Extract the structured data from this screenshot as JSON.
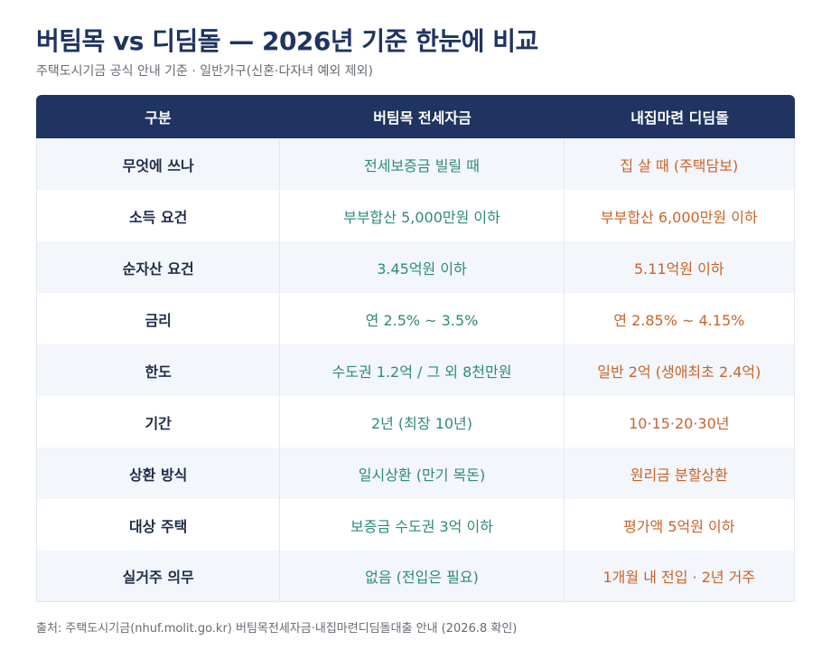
{
  "title": "버팀목 vs 디딤돌 — 2026년 기준 한눈에 비교",
  "subtitle": "주택도시기금 공식 안내 기준 · 일반가구(신혼·다자녀 예외 제외)",
  "table": {
    "headers": [
      "구분",
      "버팀목 전세자금",
      "내집마련 디딤돌"
    ],
    "rows": [
      {
        "label": "무엇에 쓰나",
        "a": "전세보증금 빌릴 때",
        "b": "집 살 때 (주택담보)"
      },
      {
        "label": "소득 요건",
        "a": "부부합산 5,000만원 이하",
        "b": "부부합산 6,000만원 이하"
      },
      {
        "label": "순자산 요건",
        "a": "3.45억원 이하",
        "b": "5.11억원 이하"
      },
      {
        "label": "금리",
        "a": "연 2.5% ~ 3.5%",
        "b": "연 2.85% ~ 4.15%"
      },
      {
        "label": "한도",
        "a": "수도권 1.2억 / 그 외 8천만원",
        "b": "일반 2억 (생애최초 2.4억)"
      },
      {
        "label": "기간",
        "a": "2년 (최장 10년)",
        "b": "10·15·20·30년"
      },
      {
        "label": "상환 방식",
        "a": "일시상환 (만기 목돈)",
        "b": "원리금 분할상환"
      },
      {
        "label": "대상 주택",
        "a": "보증금 수도권 3억 이하",
        "b": "평가액 5억원 이하"
      },
      {
        "label": "실거주 의무",
        "a": "없음 (전입은 필요)",
        "b": "1개월 내 전입 · 2년 거주"
      }
    ]
  },
  "footnote": "출처: 주택도시기금(nhuf.molit.go.kr) 버팀목전세자금·내집마련디딤돌대출 안내 (2026.8 확인)",
  "colors": {
    "header_bg": "#1f3461",
    "col_a_text": "#2e8a7b",
    "col_b_text": "#c8642a"
  }
}
